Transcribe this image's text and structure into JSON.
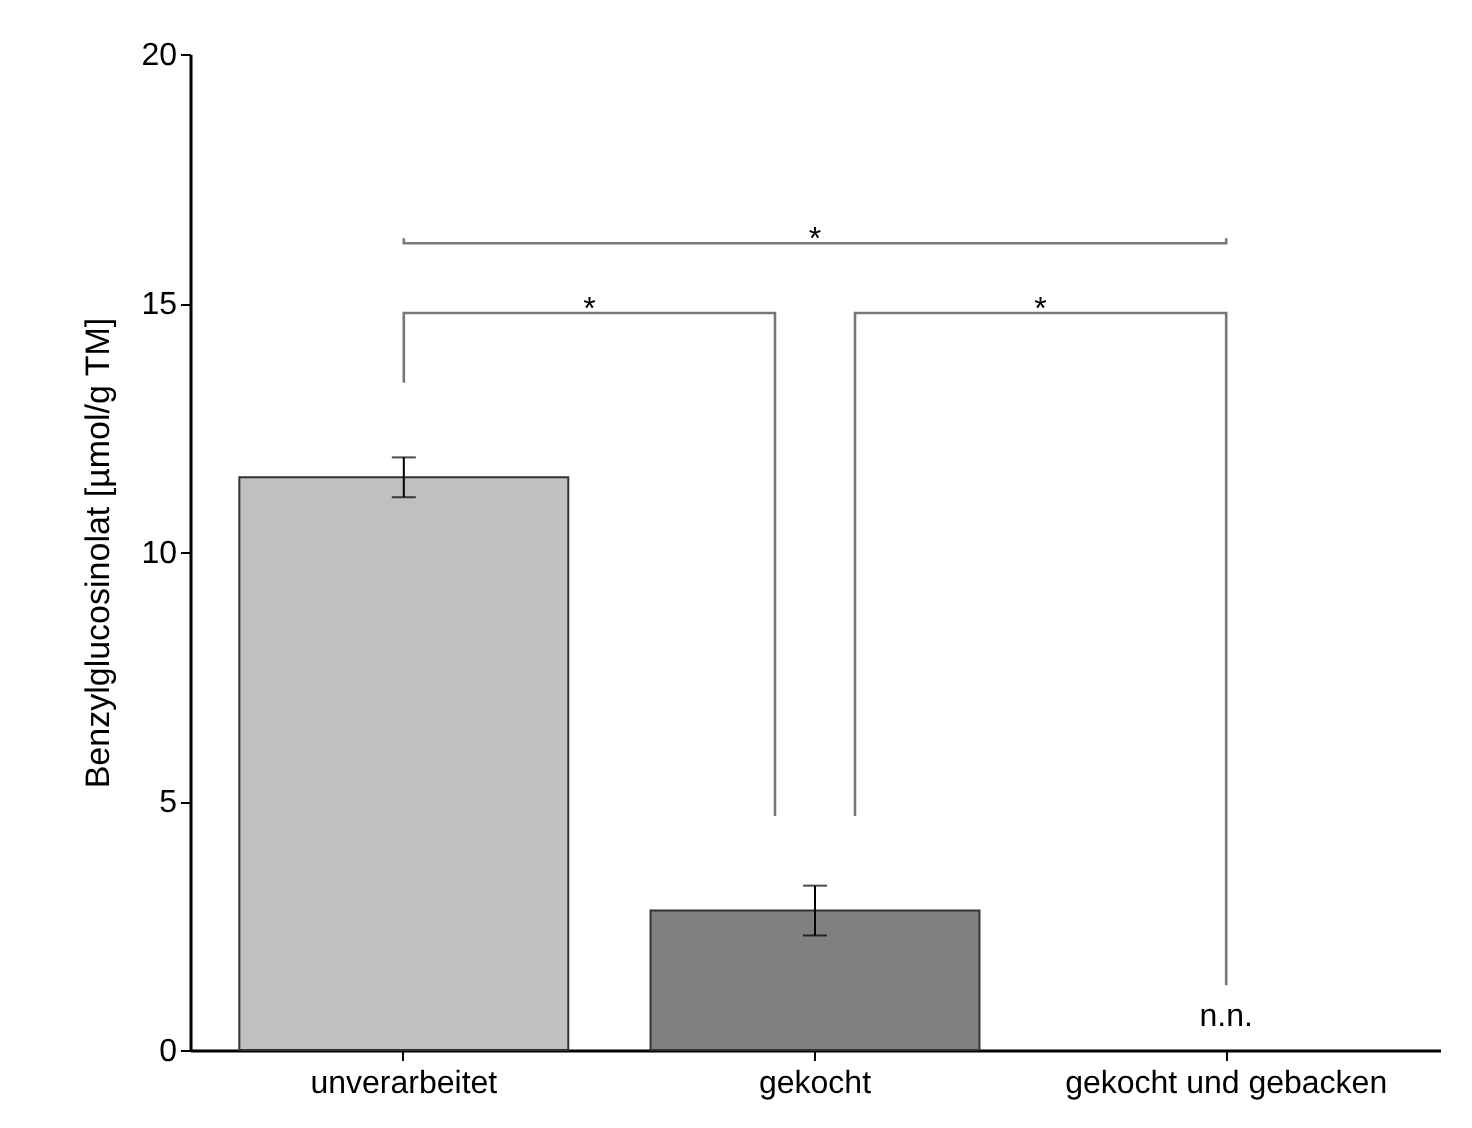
{
  "chart_data": {
    "type": "bar",
    "ylabel": "Benzylglucosinolat [µmol/g TM]",
    "categories": [
      "unverarbeitet",
      "gekocht",
      "gekocht und gebacken"
    ],
    "values": [
      11.5,
      2.8,
      null
    ],
    "colors": [
      "#c0c0c0",
      "#808080",
      "#404040"
    ],
    "errors": [
      0.4,
      0.5,
      null
    ],
    "ylim": [
      0,
      20
    ],
    "yticks": [
      0,
      5,
      10,
      15,
      20
    ],
    "grid": false,
    "annotations": [
      "*",
      "*",
      "*",
      "n.n."
    ]
  }
}
